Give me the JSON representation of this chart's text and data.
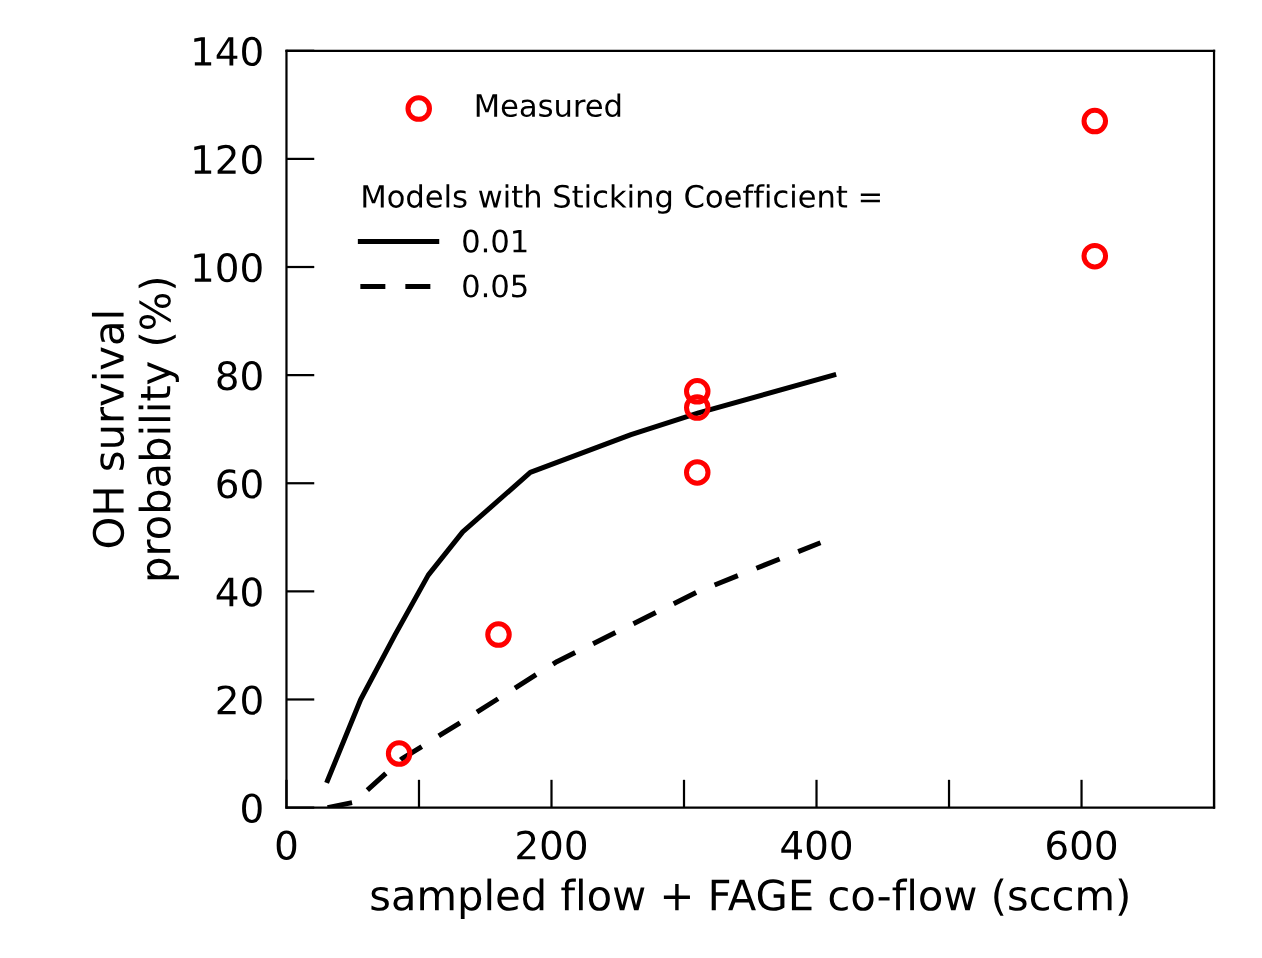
{
  "chart_data": {
    "type": "scatter",
    "xlabel": "sampled flow + FAGE co-flow (sccm)",
    "ylabel": "OH survival\nprobability (%)",
    "legend_title": "Models with Sticking Coefficient =",
    "xlim": [
      0,
      700
    ],
    "ylim": [
      0,
      140
    ],
    "xticks": [
      0,
      {
        "value": 100,
        "label": null
      },
      200,
      {
        "value": 300,
        "label": null
      },
      400,
      {
        "value": 500,
        "label": null
      },
      600,
      {
        "value": 700,
        "label": null
      }
    ],
    "yticks": [
      0,
      20,
      40,
      60,
      80,
      100,
      120,
      140
    ],
    "grid": false,
    "legend": "top left",
    "series": [
      {
        "name": "Measured",
        "color": "#ff0000",
        "marker": "circle",
        "x": [
          85,
          160,
          310,
          310,
          310,
          610,
          610
        ],
        "values": [
          10,
          32,
          77,
          74,
          62,
          127,
          102
        ]
      },
      {
        "name": "0.01",
        "type": "line",
        "color": "#000000",
        "line_style": "solid",
        "x": [
          31,
          56,
          82,
          107,
          133,
          184,
          260,
          311,
          413
        ],
        "values": [
          5,
          20,
          32,
          43,
          51,
          62,
          69,
          73,
          80
        ]
      },
      {
        "name": "0.05",
        "type": "line",
        "color": "#000000",
        "line_style": "dashed",
        "x": [
          31,
          51,
          87,
          133,
          204,
          311,
          403
        ],
        "values": [
          0,
          1,
          9,
          16,
          27,
          40,
          49
        ]
      }
    ]
  }
}
